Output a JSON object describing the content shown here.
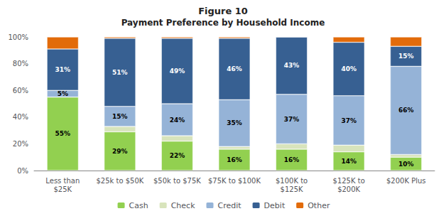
{
  "chart_data": {
    "type": "bar",
    "title": "Figure 10",
    "subtitle": "Payment Preference by Household Income",
    "categories": [
      "Less than\n$25K",
      "$25k to $50K",
      "$50k to $75K",
      "$75K to $100K",
      "$100K to\n$125K",
      "$125K to\n$200K",
      "$200K Plus"
    ],
    "stacked": true,
    "data_labels": true,
    "grid": false,
    "legend": "bottom",
    "ylim": [
      0,
      100
    ],
    "yticks": [
      {
        "value": 0,
        "label": "0%"
      },
      {
        "value": 20,
        "label": "20%"
      },
      {
        "value": 40,
        "label": "40%"
      },
      {
        "value": 60,
        "label": "60%"
      },
      {
        "value": 80,
        "label": "80%"
      },
      {
        "value": 100,
        "label": "100%"
      }
    ],
    "series": [
      {
        "name": "Cash",
        "color": "#92d050",
        "values": [
          55,
          29,
          22,
          16,
          16,
          14,
          10
        ],
        "value_labels": [
          "55%",
          "29%",
          "22%",
          "16%",
          "16%",
          "14%",
          "10%"
        ]
      },
      {
        "name": "Check",
        "color": "#d8e4bc",
        "values": [
          0,
          4,
          4,
          2,
          4,
          5,
          2
        ]
      },
      {
        "name": "Credit",
        "color": "#95b3d7",
        "values": [
          5,
          15,
          24,
          35,
          37,
          37,
          66
        ],
        "value_labels": [
          "5%",
          "15%",
          "24%",
          "35%",
          "37%",
          "37%",
          "66%"
        ]
      },
      {
        "name": "Debit",
        "color": "#376092",
        "values": [
          31,
          51,
          49,
          46,
          43,
          40,
          15
        ],
        "value_labels": [
          "31%",
          "51%",
          "49%",
          "46%",
          "43%",
          "40%",
          "15%"
        ]
      },
      {
        "name": "Other",
        "color": "#e26b0a",
        "values": [
          9,
          1,
          1,
          1,
          0,
          4,
          7
        ]
      }
    ]
  }
}
